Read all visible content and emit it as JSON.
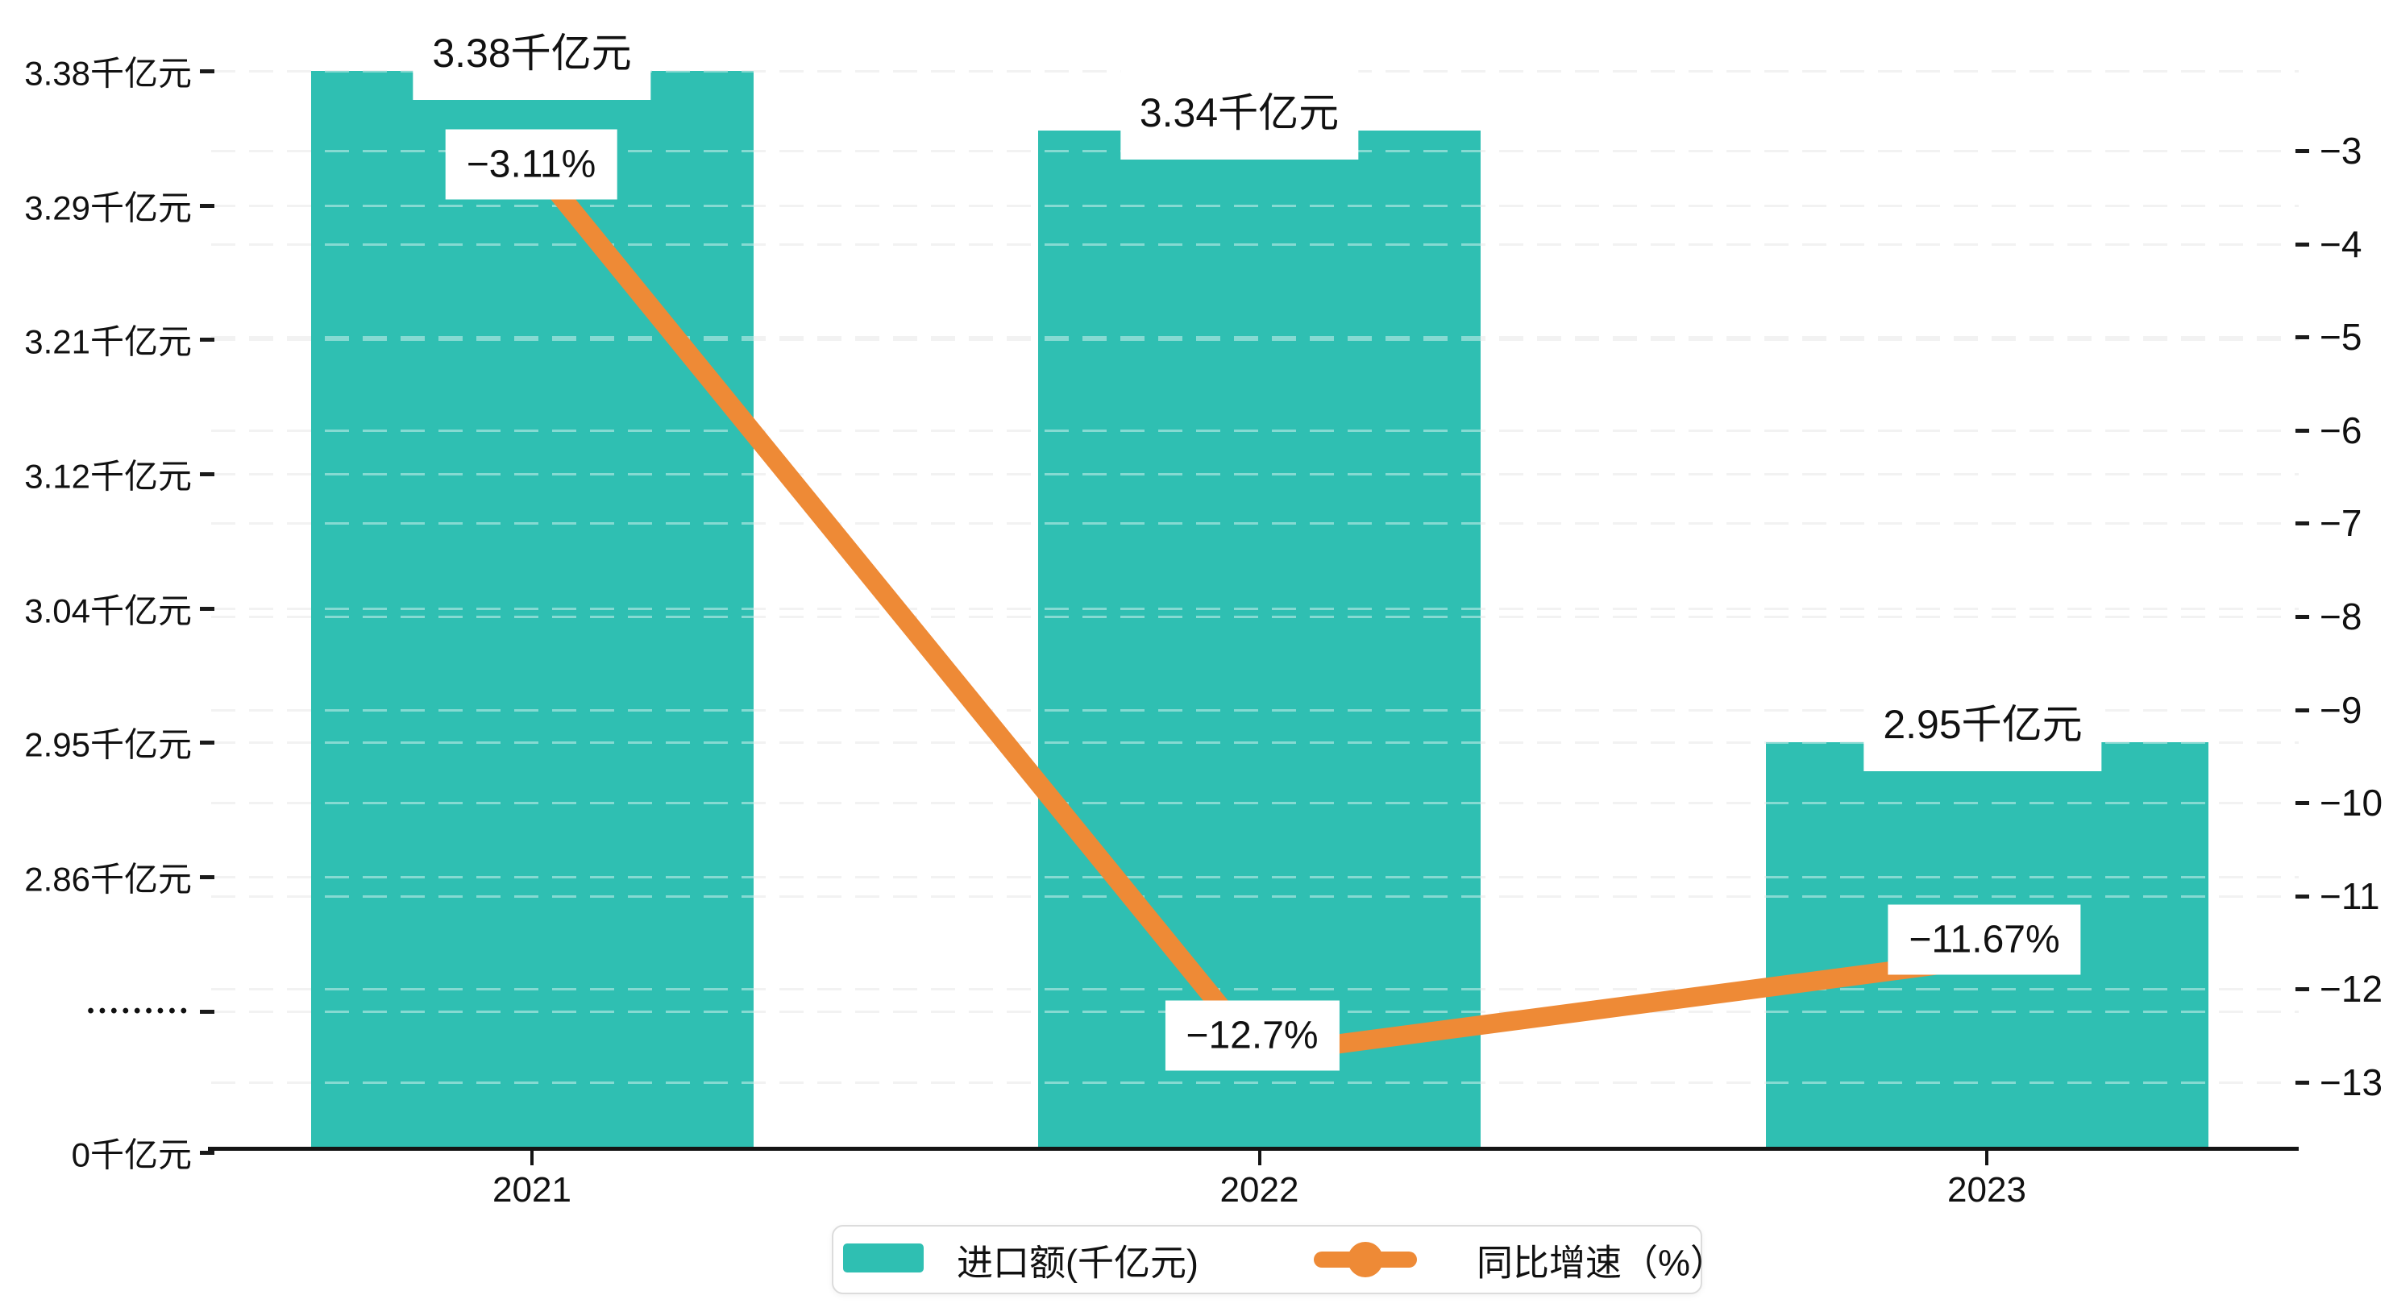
{
  "chart_data": {
    "type": "bar",
    "subtype": "bar-line-combo",
    "categories": [
      "2021",
      "2022",
      "2023"
    ],
    "series": [
      {
        "name": "进口额(千亿元)",
        "type": "bar",
        "unit": "千亿元",
        "values": [
          3.38,
          3.34,
          2.95
        ],
        "data_labels": [
          "3.38千亿元",
          "3.34千亿元",
          "2.95千亿元"
        ],
        "color": "#2FBFB2"
      },
      {
        "name": "同比增速（%）",
        "type": "line",
        "unit": "%",
        "values": [
          -3.11,
          -12.7,
          -11.67
        ],
        "data_labels": [
          "−3.11%",
          "−12.7%",
          "−11.67%"
        ],
        "color": "#EE8A36"
      }
    ],
    "left_axis": {
      "tick_labels": [
        "3.38千亿元",
        "3.29千亿元",
        "3.21千亿元",
        "3.12千亿元",
        "3.04千亿元",
        "2.95千亿元",
        "2.86千亿元",
        "•••••••••",
        "0千亿元"
      ],
      "tick_values": [
        3.38,
        3.29,
        3.21,
        3.12,
        3.04,
        2.95,
        2.86
      ],
      "has_scale_break": true,
      "min_label": "0千亿元"
    },
    "right_axis": {
      "tick_labels": [
        "−3",
        "−4",
        "−5",
        "−6",
        "−7",
        "−8",
        "−9",
        "−10",
        "−11",
        "−12",
        "−13"
      ],
      "range": [
        -3,
        -13
      ]
    },
    "grid": true,
    "legend_position": "bottom"
  },
  "legend": {
    "items": [
      {
        "label": "进口额(千亿元)",
        "color": "#2FBFB2",
        "marker": "bar-swatch"
      },
      {
        "label": "同比增速（%）",
        "color": "#EE8A36",
        "marker": "line-with-dot"
      }
    ]
  },
  "colors": {
    "bar": "#2FBFB2",
    "line": "#EE8A36",
    "axis": "#141414",
    "gridline": "#e9e9e9",
    "label_bg": "#ffffff"
  }
}
